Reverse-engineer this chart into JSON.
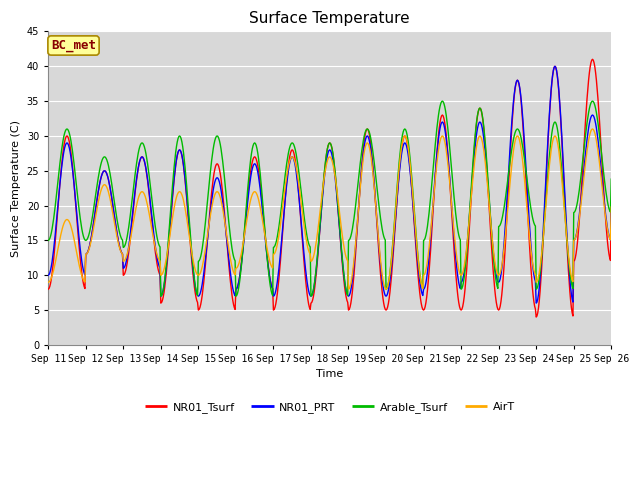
{
  "title": "Surface Temperature",
  "ylabel": "Surface Temperature (C)",
  "xlabel": "Time",
  "annotation": "BC_met",
  "ylim": [
    0,
    45
  ],
  "series_colors": {
    "NR01_Tsurf": "#ff0000",
    "NR01_PRT": "#0000ff",
    "Arable_Tsurf": "#00bb00",
    "AirT": "#ffaa00"
  },
  "series_names": [
    "NR01_Tsurf",
    "NR01_PRT",
    "Arable_Tsurf",
    "AirT"
  ],
  "xtick_labels": [
    "Sep 11",
    "Sep 12",
    "Sep 13",
    "Sep 14",
    "Sep 15",
    "Sep 16",
    "Sep 17",
    "Sep 18",
    "Sep 19",
    "Sep 20",
    "Sep 21",
    "Sep 22",
    "Sep 23",
    "Sep 24",
    "Sep 25",
    "Sep 26"
  ],
  "fig_bg": "#ffffff",
  "plot_bg": "#d8d8d8",
  "grid_color": "#ffffff",
  "line_width": 1.0,
  "annotation_bg": "#ffff99",
  "annotation_border": "#aa8800",
  "annotation_text_color": "#880000",
  "title_fontsize": 11,
  "label_fontsize": 8,
  "tick_fontsize": 7,
  "legend_fontsize": 8
}
